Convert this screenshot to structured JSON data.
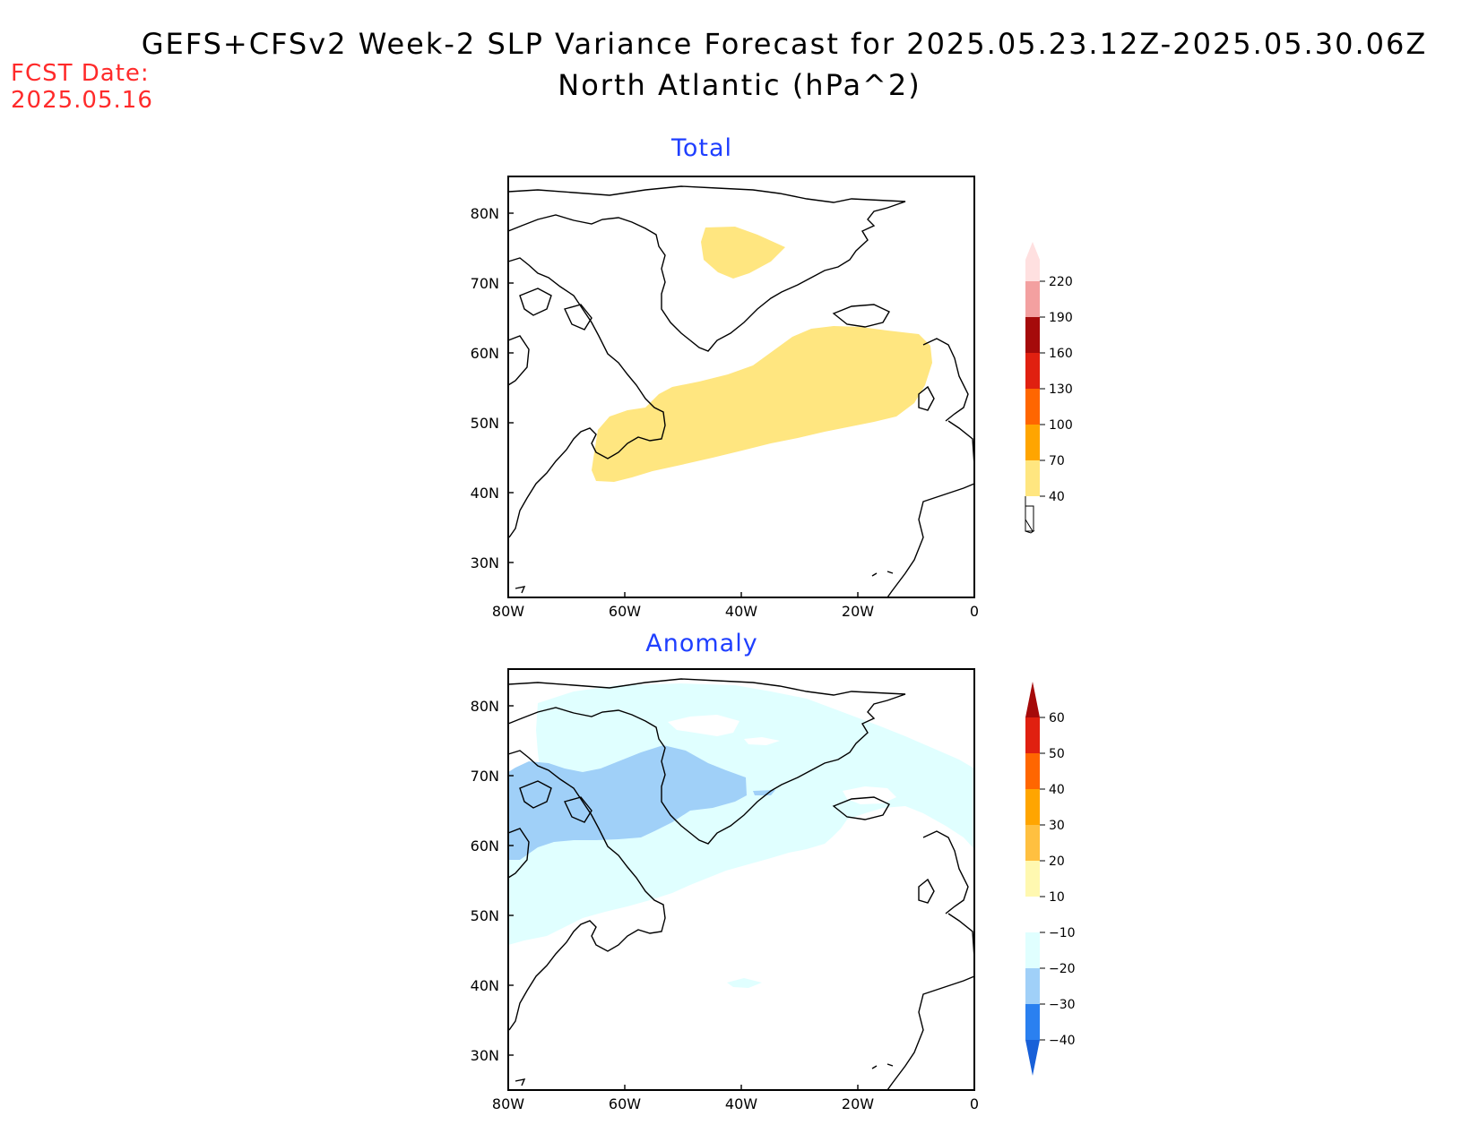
{
  "header": {
    "title_line1": "GEFS+CFSv2 Week-2 SLP Variance Forecast for 2025.05.23.12Z-2025.05.30.06Z",
    "title_line2": "North Atlantic (hPa^2)",
    "fcst_label": "FCST Date:",
    "fcst_value": "2025.05.16"
  },
  "panels": [
    {
      "title": "Total",
      "lat_ticks": [
        "80N",
        "70N",
        "60N",
        "50N",
        "40N",
        "30N"
      ],
      "lon_ticks": [
        "80W",
        "60W",
        "40W",
        "20W",
        "0"
      ],
      "colorbar": {
        "labels": [
          "40",
          "70",
          "100",
          "130",
          "160",
          "190",
          "220"
        ],
        "colors": [
          "#ffe680",
          "#ffa500",
          "#ff6600",
          "#e02010",
          "#a50a0a",
          "#f3a0a0",
          "#ffe0e0"
        ]
      }
    },
    {
      "title": "Anomaly",
      "lat_ticks": [
        "80N",
        "70N",
        "60N",
        "50N",
        "40N",
        "30N"
      ],
      "lon_ticks": [
        "80W",
        "60W",
        "40W",
        "20W",
        "0"
      ],
      "colorbar": {
        "labels": [
          "60",
          "50",
          "40",
          "30",
          "20",
          "10",
          "−10",
          "−20",
          "−30",
          "−40"
        ],
        "colors": [
          "#a50a0a",
          "#e02010",
          "#ff6600",
          "#ffa500",
          "#ffc040",
          "#fff8b0",
          "#ffffff",
          "#e0ffff",
          "#a0d0f8",
          "#2a80f0",
          "#1860d8"
        ]
      }
    }
  ],
  "colors": {
    "total_shading": "#ffe680",
    "anomaly_light": "#e0ffff",
    "anomaly_mid": "#a0d0f8",
    "title_blue": "#1f3fff",
    "fcst_red": "#ff2a2a"
  }
}
